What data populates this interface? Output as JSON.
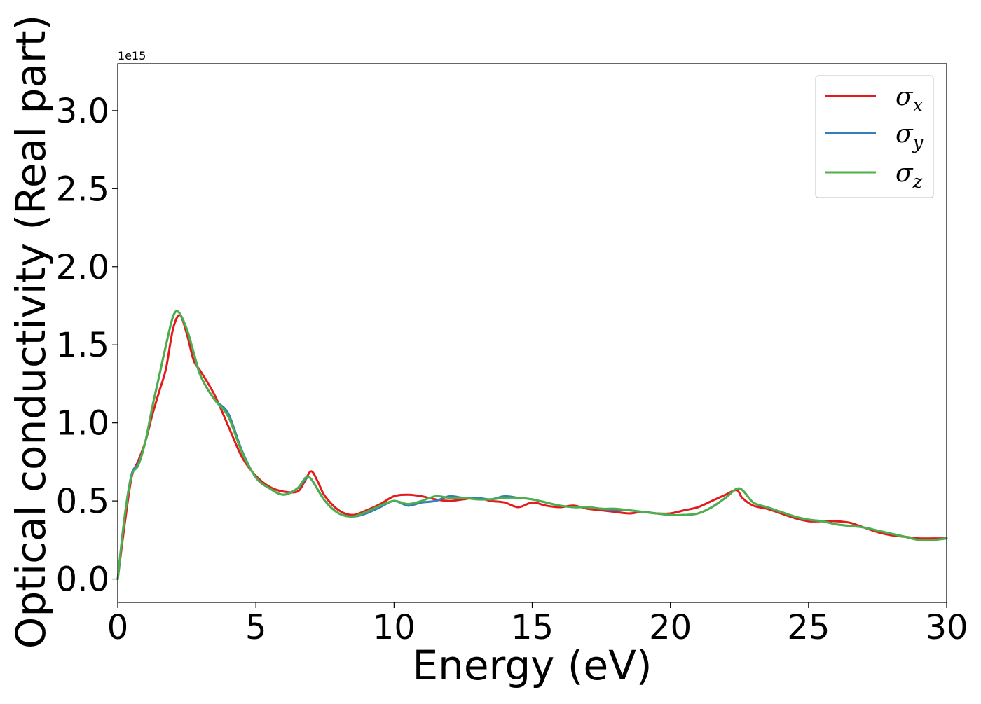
{
  "chart_data": {
    "type": "line",
    "xlabel": "Energy (eV)",
    "ylabel": "Optical conductivity (Real part)",
    "offset_text": "1e15",
    "xlim": [
      0,
      30
    ],
    "ylim": [
      -0.15,
      3.3
    ],
    "x_ticks": [
      0,
      5,
      10,
      15,
      20,
      25,
      30
    ],
    "x_tick_labels": [
      "0",
      "5",
      "10",
      "15",
      "20",
      "25",
      "30"
    ],
    "y_ticks": [
      0.0,
      0.5,
      1.0,
      1.5,
      2.0,
      2.5,
      3.0
    ],
    "y_tick_labels": [
      "0.0",
      "0.5",
      "1.0",
      "1.5",
      "2.0",
      "2.5",
      "3.0"
    ],
    "grid": false,
    "legend_position": "top-right",
    "series": [
      {
        "name": "σx",
        "symbol": "σ",
        "subscript": "x",
        "color": "#e41a1c",
        "x": [
          0,
          0.25,
          0.5,
          0.75,
          1.0,
          1.25,
          1.5,
          1.75,
          2.0,
          2.25,
          2.5,
          2.75,
          3.0,
          3.5,
          4.0,
          4.5,
          5.0,
          5.5,
          6.0,
          6.5,
          6.75,
          7.0,
          7.25,
          7.5,
          8.0,
          8.5,
          9.0,
          9.5,
          10.0,
          10.5,
          11.0,
          11.5,
          12.0,
          12.5,
          13.0,
          13.5,
          14.0,
          14.5,
          15.0,
          15.5,
          16.0,
          16.5,
          17.0,
          17.5,
          18.0,
          18.5,
          19.0,
          19.5,
          20.0,
          20.5,
          21.0,
          21.5,
          22.0,
          22.4,
          22.6,
          23.0,
          23.5,
          24.0,
          24.5,
          25.0,
          25.5,
          26.0,
          26.5,
          27.0,
          27.5,
          28.0,
          28.5,
          29.0,
          29.5,
          30.0
        ],
        "y": [
          0.0,
          0.35,
          0.65,
          0.76,
          0.88,
          1.05,
          1.2,
          1.35,
          1.6,
          1.69,
          1.57,
          1.4,
          1.33,
          1.18,
          0.98,
          0.78,
          0.66,
          0.59,
          0.56,
          0.56,
          0.62,
          0.69,
          0.62,
          0.53,
          0.44,
          0.41,
          0.44,
          0.48,
          0.53,
          0.54,
          0.53,
          0.51,
          0.5,
          0.51,
          0.52,
          0.5,
          0.49,
          0.46,
          0.49,
          0.47,
          0.46,
          0.47,
          0.45,
          0.44,
          0.43,
          0.42,
          0.43,
          0.42,
          0.42,
          0.44,
          0.46,
          0.5,
          0.54,
          0.57,
          0.52,
          0.47,
          0.45,
          0.42,
          0.39,
          0.37,
          0.37,
          0.37,
          0.36,
          0.33,
          0.3,
          0.28,
          0.27,
          0.26,
          0.26,
          0.26
        ]
      },
      {
        "name": "σy",
        "symbol": "σ",
        "subscript": "y",
        "color": "#377eb8",
        "x": [
          0,
          0.25,
          0.5,
          0.75,
          1.0,
          1.25,
          1.5,
          1.75,
          2.0,
          2.2,
          2.5,
          2.75,
          3.0,
          3.5,
          4.0,
          4.5,
          5.0,
          5.5,
          6.0,
          6.5,
          6.8,
          7.0,
          7.5,
          8.0,
          8.5,
          9.0,
          9.5,
          10.0,
          10.5,
          11.0,
          11.5,
          12.0,
          12.5,
          13.0,
          13.5,
          14.0,
          14.5,
          15.0,
          15.5,
          16.0,
          16.5,
          17.0,
          17.5,
          18.0,
          18.5,
          19.0,
          19.5,
          20.0,
          20.5,
          21.0,
          21.5,
          22.0,
          22.5,
          23.0,
          23.5,
          24.0,
          24.5,
          25.0,
          25.5,
          26.0,
          26.5,
          27.0,
          27.5,
          28.0,
          28.5,
          29.0,
          29.5,
          30.0
        ],
        "y": [
          0.0,
          0.4,
          0.67,
          0.74,
          0.88,
          1.1,
          1.3,
          1.5,
          1.68,
          1.71,
          1.6,
          1.45,
          1.3,
          1.15,
          1.06,
          0.82,
          0.65,
          0.58,
          0.54,
          0.58,
          0.64,
          0.64,
          0.5,
          0.42,
          0.4,
          0.42,
          0.46,
          0.5,
          0.47,
          0.49,
          0.5,
          0.53,
          0.52,
          0.52,
          0.51,
          0.53,
          0.52,
          0.51,
          0.49,
          0.47,
          0.46,
          0.46,
          0.45,
          0.44,
          0.44,
          0.43,
          0.42,
          0.41,
          0.41,
          0.42,
          0.46,
          0.52,
          0.58,
          0.49,
          0.46,
          0.43,
          0.4,
          0.38,
          0.37,
          0.35,
          0.34,
          0.33,
          0.31,
          0.29,
          0.27,
          0.25,
          0.25,
          0.26
        ]
      },
      {
        "name": "σz",
        "symbol": "σ",
        "subscript": "z",
        "color": "#4daf4a",
        "x": [
          0,
          0.25,
          0.5,
          0.75,
          1.0,
          1.25,
          1.5,
          1.75,
          2.0,
          2.2,
          2.5,
          2.75,
          3.0,
          3.5,
          4.0,
          4.5,
          5.0,
          5.5,
          6.0,
          6.5,
          6.8,
          7.0,
          7.5,
          8.0,
          8.5,
          9.0,
          9.5,
          10.0,
          10.5,
          11.0,
          11.5,
          12.0,
          12.5,
          13.0,
          13.5,
          14.0,
          14.5,
          15.0,
          15.5,
          16.0,
          16.5,
          17.0,
          17.5,
          18.0,
          18.5,
          19.0,
          19.5,
          20.0,
          20.5,
          21.0,
          21.5,
          22.0,
          22.5,
          23.0,
          23.5,
          24.0,
          24.5,
          25.0,
          25.5,
          26.0,
          26.5,
          27.0,
          27.5,
          28.0,
          28.5,
          29.0,
          29.5,
          30.0
        ],
        "y": [
          0.0,
          0.4,
          0.66,
          0.73,
          0.88,
          1.1,
          1.3,
          1.5,
          1.68,
          1.71,
          1.6,
          1.45,
          1.3,
          1.15,
          1.04,
          0.81,
          0.65,
          0.58,
          0.54,
          0.58,
          0.65,
          0.64,
          0.5,
          0.42,
          0.4,
          0.43,
          0.47,
          0.5,
          0.48,
          0.5,
          0.53,
          0.52,
          0.52,
          0.51,
          0.51,
          0.52,
          0.52,
          0.51,
          0.49,
          0.47,
          0.46,
          0.46,
          0.45,
          0.45,
          0.44,
          0.43,
          0.42,
          0.41,
          0.41,
          0.42,
          0.46,
          0.52,
          0.58,
          0.49,
          0.46,
          0.43,
          0.4,
          0.38,
          0.37,
          0.35,
          0.34,
          0.33,
          0.31,
          0.29,
          0.27,
          0.25,
          0.25,
          0.26
        ]
      }
    ]
  }
}
